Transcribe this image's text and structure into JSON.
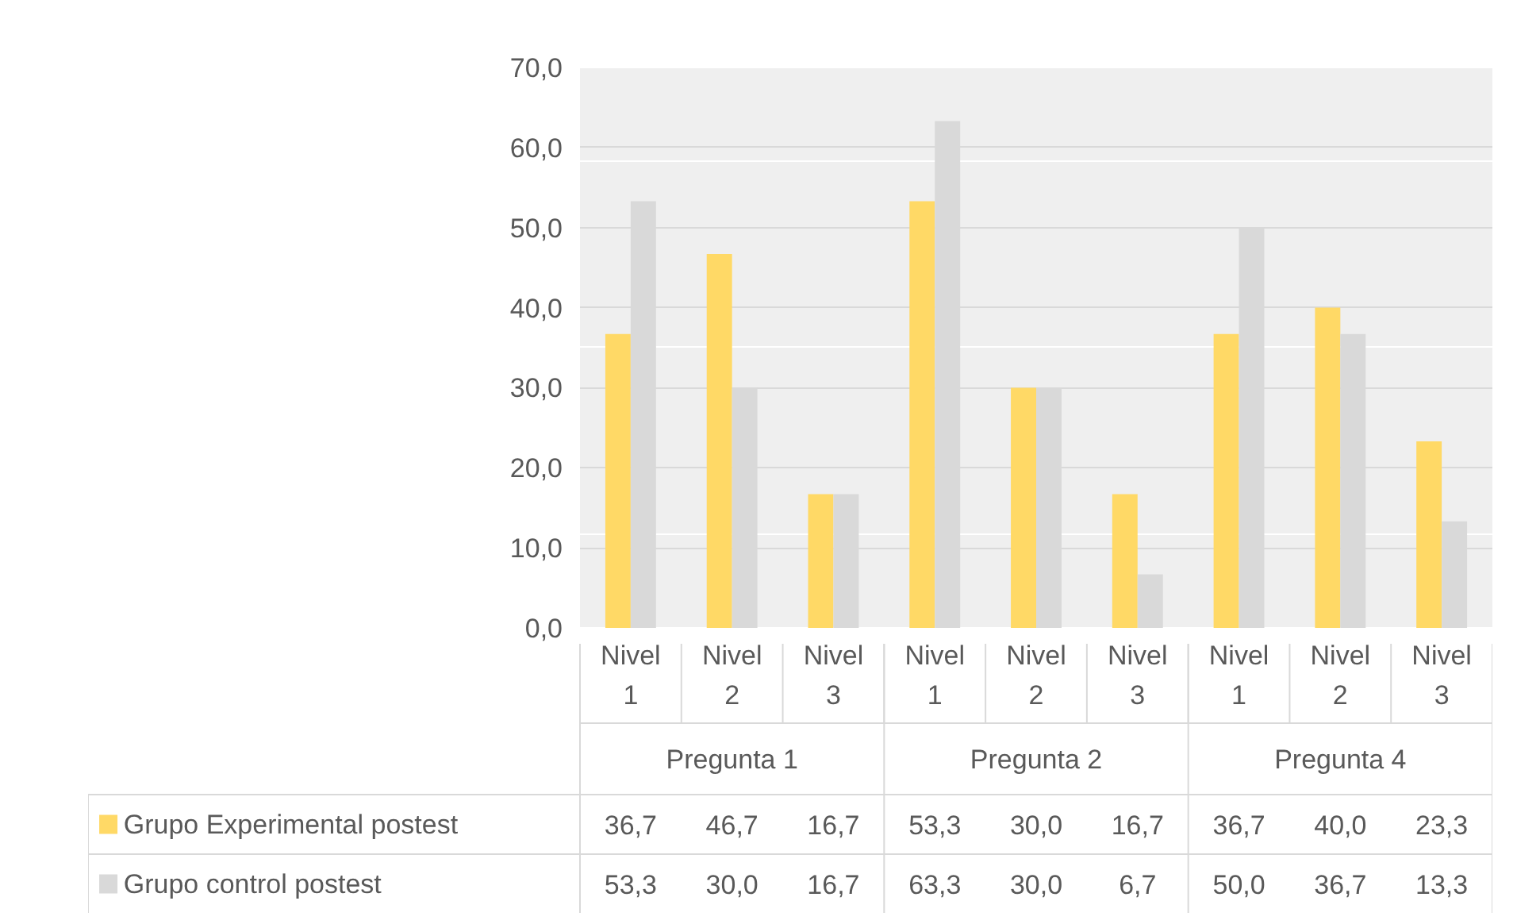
{
  "chart_data": {
    "type": "bar",
    "categories": [
      "Nivel 1",
      "Nivel 2",
      "Nivel 3",
      "Nivel 1",
      "Nivel 2",
      "Nivel 3",
      "Nivel 1",
      "Nivel 2",
      "Nivel 3"
    ],
    "annotations": [
      "Pregunta 1",
      "Pregunta 2",
      "Pregunta 4"
    ],
    "series": [
      {
        "name": "Grupo Experimental postest",
        "color": "#ffd966",
        "values": [
          36.7,
          46.7,
          16.7,
          53.3,
          30.0,
          16.7,
          36.7,
          40.0,
          23.3
        ],
        "value_labels": [
          "36,7",
          "46,7",
          "16,7",
          "53,3",
          "30,0",
          "16,7",
          "36,7",
          "40,0",
          "23,3"
        ]
      },
      {
        "name": "Grupo control postest",
        "color": "#d9d9d9",
        "values": [
          53.3,
          30.0,
          16.7,
          63.3,
          30.0,
          6.7,
          50.0,
          36.7,
          13.3
        ],
        "value_labels": [
          "53,3",
          "30,0",
          "16,7",
          "63,3",
          "30,0",
          "6,7",
          "50,0",
          "36,7",
          "13,3"
        ]
      }
    ],
    "ylim": [
      0,
      70
    ],
    "yticks": [
      {
        "value": 0,
        "label": "0,0"
      },
      {
        "value": 10,
        "label": "10,0"
      },
      {
        "value": 20,
        "label": "20,0"
      },
      {
        "value": 30,
        "label": "30,0"
      },
      {
        "value": 40,
        "label": "40,0"
      },
      {
        "value": 50,
        "label": "50,0"
      },
      {
        "value": 60,
        "label": "60,0"
      },
      {
        "value": 70,
        "label": "70,0"
      }
    ],
    "grid": "y",
    "legend": "bottom"
  }
}
